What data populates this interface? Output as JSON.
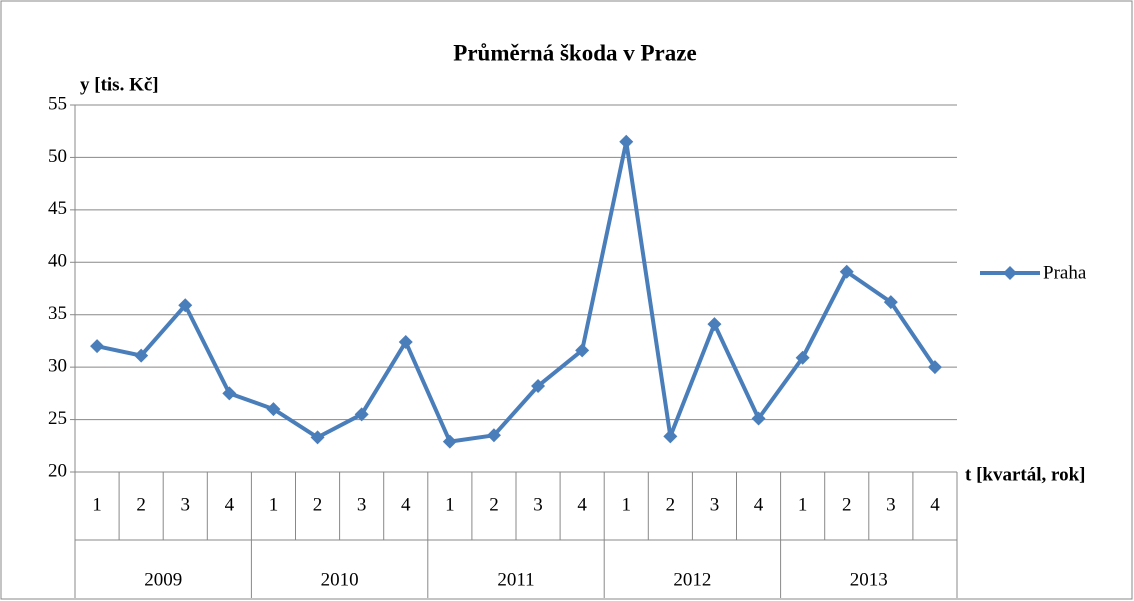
{
  "chart_data": {
    "type": "line",
    "title": "Průměrná škoda v Praze",
    "y_label": "y [tis. Kč]",
    "x_label": "t [kvartál, rok]",
    "categories": [
      "1",
      "2",
      "3",
      "4",
      "1",
      "2",
      "3",
      "4",
      "1",
      "2",
      "3",
      "4",
      "1",
      "2",
      "3",
      "4",
      "1",
      "2",
      "3",
      "4"
    ],
    "groups": [
      "2009",
      "2010",
      "2011",
      "2012",
      "2013"
    ],
    "series": [
      {
        "name": "Praha",
        "color": "#4a7ebb",
        "values": [
          32,
          31.1,
          35.9,
          27.5,
          26,
          23.3,
          25.5,
          32.4,
          22.9,
          23.5,
          28.2,
          31.6,
          51.5,
          23.4,
          34.1,
          25.1,
          30.9,
          39.1,
          36.2,
          30
        ]
      }
    ],
    "ylim": [
      20,
      55
    ],
    "yticks": [
      20,
      25,
      30,
      35,
      40,
      45,
      50,
      55
    ],
    "grid": true,
    "legend": "right"
  }
}
